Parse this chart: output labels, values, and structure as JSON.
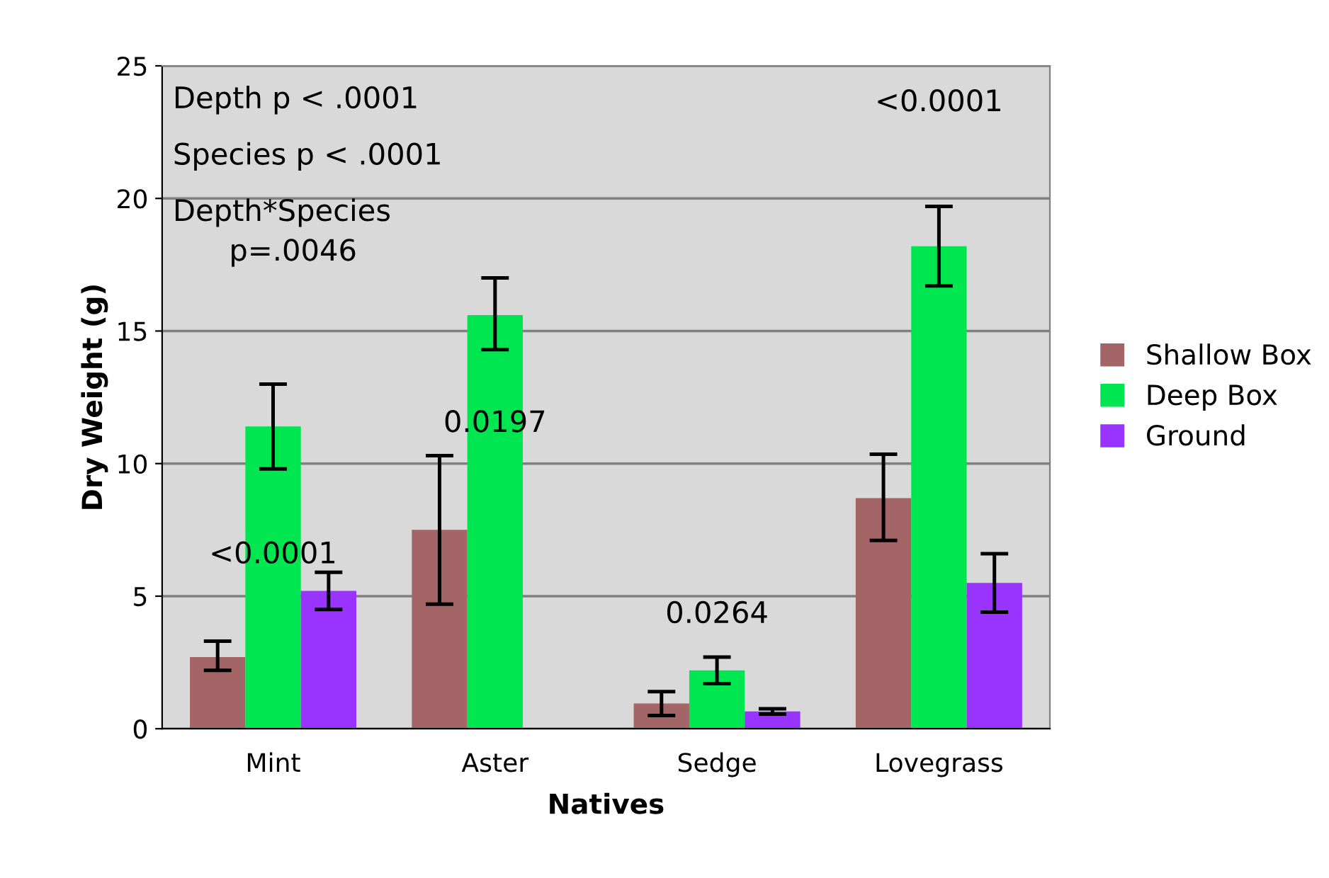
{
  "chart_data": {
    "type": "bar",
    "xlabel": "Natives",
    "ylabel": "Dry Weight (g)",
    "categories": [
      "Mint",
      "Aster",
      "Sedge",
      "Lovegrass"
    ],
    "series": [
      {
        "name": "Shallow Box",
        "color": "#a36565",
        "values": [
          2.7,
          7.5,
          0.95,
          8.7
        ],
        "errors": [
          [
            2.2,
            3.3
          ],
          [
            4.7,
            10.3
          ],
          [
            0.5,
            1.4
          ],
          [
            7.1,
            10.35
          ]
        ]
      },
      {
        "name": "Deep Box",
        "color": "#00e650",
        "values": [
          11.4,
          15.6,
          2.2,
          18.2
        ],
        "errors": [
          [
            9.8,
            13.0
          ],
          [
            14.3,
            17.0
          ],
          [
            1.7,
            2.7
          ],
          [
            16.7,
            19.7
          ]
        ]
      },
      {
        "name": "Ground",
        "color": "#9933ff",
        "values": [
          5.2,
          0,
          0.65,
          5.5
        ],
        "errors": [
          [
            4.5,
            5.9
          ],
          null,
          [
            0.55,
            0.75
          ],
          [
            4.4,
            6.6
          ]
        ]
      }
    ],
    "ylim": [
      0,
      25
    ],
    "yticks": [
      0,
      5,
      10,
      15,
      20,
      25
    ],
    "grid": "y",
    "legend": "right",
    "annotations": [
      "Depth p < .0001",
      "Species p < .0001",
      "Depth*Species\n      p=.0046",
      "<0.0001",
      "0.0197",
      "0.0264",
      "<0.0001"
    ]
  }
}
